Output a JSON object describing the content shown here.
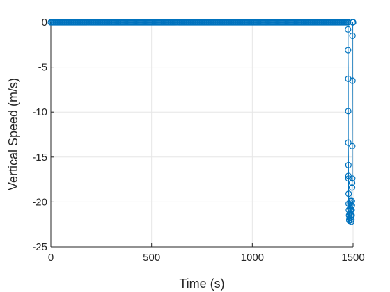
{
  "chart_data": {
    "type": "scatter",
    "title": "",
    "xlabel": "Time (s)",
    "ylabel": "Vertical Speed (m/s)",
    "xlim": [
      0,
      1500
    ],
    "ylim": [
      -25,
      0
    ],
    "xticks": [
      0,
      500,
      1000,
      1500
    ],
    "yticks": [
      0,
      -5,
      -10,
      -15,
      -20,
      -25
    ],
    "xtick_labels": [
      "0",
      "500",
      "1000",
      "1500"
    ],
    "ytick_labels": [
      "0",
      "-5",
      "-10",
      "-15",
      "-20",
      "-25"
    ],
    "grid": true,
    "legend": "none",
    "series_color": "#0072BD",
    "marker": "circle",
    "connected_line": true,
    "series": [
      {
        "x_start": 0,
        "x_end": 1470,
        "y_constant": 0,
        "point_spacing": 5
      },
      {
        "x": [
          1475,
          1475,
          1475,
          1476,
          1476,
          1476,
          1477,
          1477,
          1477,
          1478,
          1478,
          1479,
          1480,
          1481,
          1482,
          1483,
          1484,
          1485,
          1486,
          1487,
          1487,
          1488,
          1489,
          1490,
          1491,
          1492,
          1493,
          1493,
          1494,
          1494,
          1495,
          1495,
          1496,
          1496,
          1497,
          1497,
          1498,
          1498,
          1499,
          1500,
          1500
        ],
        "y": [
          0,
          -0.8,
          -3.1,
          -6.3,
          -9.9,
          -13.4,
          -15.9,
          -17.1,
          -17.4,
          -19.1,
          -20.2,
          -20.9,
          -21.5,
          -22.0,
          -22.1,
          -21.8,
          -21.3,
          -20.7,
          -20.1,
          -19.9,
          -20.3,
          -20.9,
          -21.5,
          -22.0,
          -22.2,
          -22.0,
          -21.5,
          -20.9,
          -20.4,
          -19.9,
          -18.4,
          -17.9,
          -17.4,
          -13.8,
          -6.5,
          -1.5,
          0,
          0,
          0,
          0,
          0
        ]
      }
    ]
  }
}
